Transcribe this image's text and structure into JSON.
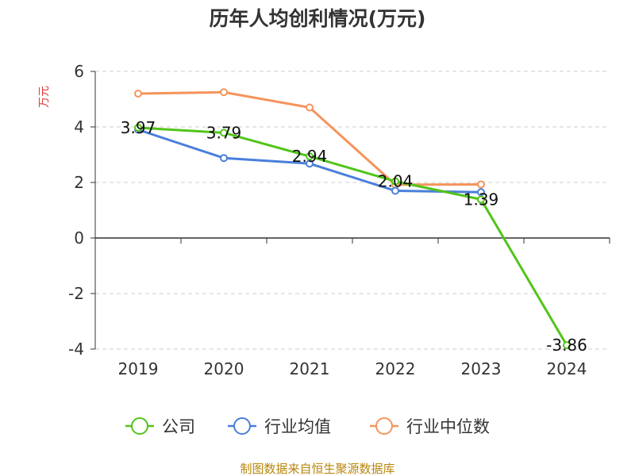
{
  "chart_data": {
    "type": "line",
    "title": "历年人均创利情况(万元)",
    "ylabel": "万元",
    "xlabel": "",
    "categories": [
      "2019",
      "2020",
      "2021",
      "2022",
      "2023",
      "2024"
    ],
    "ylim": [
      -4,
      6
    ],
    "yticks": [
      6,
      4,
      2,
      0,
      -2,
      -4
    ],
    "grid": true,
    "legend_position": "bottom",
    "series": [
      {
        "name": "公司",
        "color": "#52c41a",
        "values": [
          3.97,
          3.79,
          2.94,
          2.04,
          1.39,
          -3.86
        ],
        "labels": [
          "3.97",
          "3.79",
          "2.94",
          "2.04",
          "1.39",
          "-3.86"
        ]
      },
      {
        "name": "行业均值",
        "color": "#4a7fdb",
        "values": [
          3.9,
          2.88,
          2.68,
          1.7,
          1.65,
          null
        ]
      },
      {
        "name": "行业中位数",
        "color": "#f5945c",
        "values": [
          5.2,
          5.25,
          4.7,
          1.92,
          1.93,
          null
        ]
      }
    ]
  },
  "source": "制图数据来自恒生聚源数据库"
}
